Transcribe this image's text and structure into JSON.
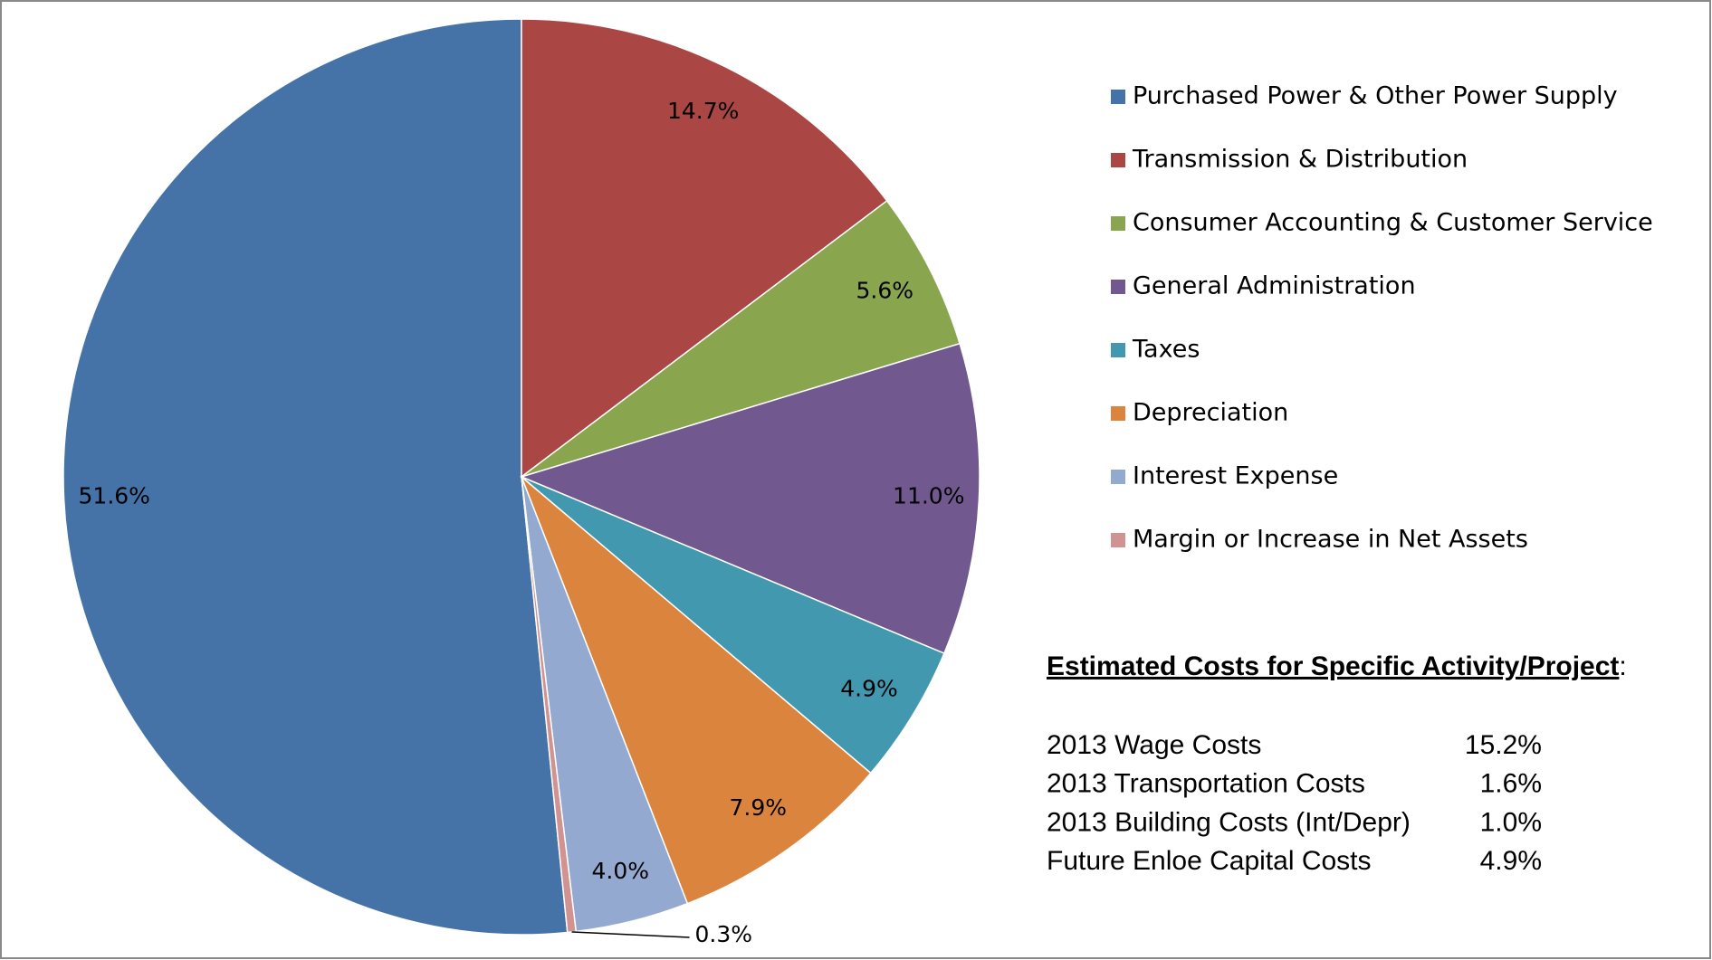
{
  "chart_data": {
    "type": "pie",
    "categories": [
      "Purchased Power & Other Power Supply",
      "Transmission & Distribution",
      "Consumer Accounting & Customer Service",
      "General Administration",
      "Taxes",
      "Depreciation",
      "Interest Expense",
      "Margin or Increase in Net Assets"
    ],
    "values": [
      51.6,
      14.7,
      5.6,
      11.0,
      4.9,
      7.9,
      4.0,
      0.3
    ],
    "value_labels": [
      "51.6%",
      "14.7%",
      "5.6%",
      "11.0%",
      "4.9%",
      "7.9%",
      "4.0%",
      "0.3%"
    ],
    "colors": [
      "#4572a7",
      "#aa4643",
      "#89a54e",
      "#71588f",
      "#4198af",
      "#db843d",
      "#93a9cf",
      "#d19392"
    ],
    "legend": "right"
  },
  "costs_table": {
    "title": "Estimated Costs for Specific Activity/Project",
    "title_suffix": ":",
    "rows": [
      [
        "2013 Wage Costs",
        "15.2%"
      ],
      [
        "2013 Transportation Costs",
        "1.6%"
      ],
      [
        "2013 Building Costs (Int/Depr)",
        "1.0%"
      ],
      [
        "Future Enloe Capital Costs",
        "4.9%"
      ]
    ]
  }
}
